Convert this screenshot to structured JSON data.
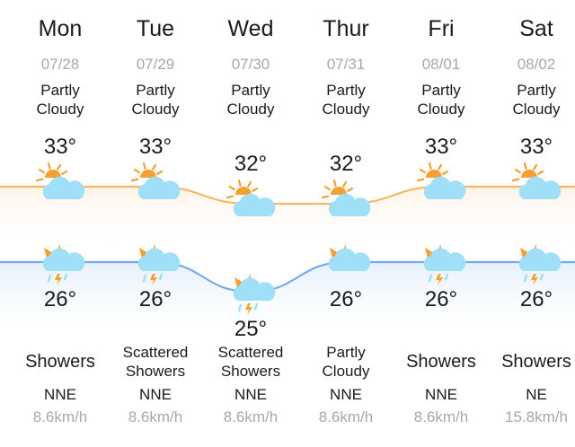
{
  "colors": {
    "high_line": "#f7b766",
    "low_line": "#72aaf0",
    "sun": "#f5a031",
    "cloud": "#9fdff7"
  },
  "days": [
    {
      "day": "Mon",
      "date": "07/28",
      "day_condition": [
        "Partly",
        "Cloudy"
      ],
      "day_icon": "partly-cloudy-day-icon",
      "high": 33,
      "high_label": "33°",
      "night_icon": "thunder-shower-night-icon",
      "low": 26,
      "low_label": "26°",
      "night_condition": [
        "Showers"
      ],
      "wind_dir": "NNE",
      "wind_speed": "8.6km/h"
    },
    {
      "day": "Tue",
      "date": "07/29",
      "day_condition": [
        "Partly",
        "Cloudy"
      ],
      "day_icon": "partly-cloudy-day-icon",
      "high": 33,
      "high_label": "33°",
      "night_icon": "thunder-shower-night-icon",
      "low": 26,
      "low_label": "26°",
      "night_condition": [
        "Scattered",
        "Showers"
      ],
      "wind_dir": "NNE",
      "wind_speed": "8.6km/h"
    },
    {
      "day": "Wed",
      "date": "07/30",
      "day_condition": [
        "Partly",
        "Cloudy"
      ],
      "day_icon": "partly-cloudy-day-icon",
      "high": 32,
      "high_label": "32°",
      "night_icon": "thunder-shower-night-icon",
      "low": 25,
      "low_label": "25°",
      "night_condition": [
        "Scattered",
        "Showers"
      ],
      "wind_dir": "NNE",
      "wind_speed": "8.6km/h"
    },
    {
      "day": "Thur",
      "date": "07/31",
      "day_condition": [
        "Partly",
        "Cloudy"
      ],
      "day_icon": "partly-cloudy-day-icon",
      "high": 32,
      "high_label": "32°",
      "night_icon": "partly-cloudy-night-icon",
      "low": 26,
      "low_label": "26°",
      "night_condition": [
        "Partly",
        "Cloudy"
      ],
      "wind_dir": "NNE",
      "wind_speed": "8.6km/h"
    },
    {
      "day": "Fri",
      "date": "08/01",
      "day_condition": [
        "Partly",
        "Cloudy"
      ],
      "day_icon": "partly-cloudy-day-icon",
      "high": 33,
      "high_label": "33°",
      "night_icon": "thunder-shower-night-icon",
      "low": 26,
      "low_label": "26°",
      "night_condition": [
        "Showers"
      ],
      "wind_dir": "NNE",
      "wind_speed": "8.6km/h"
    },
    {
      "day": "Sat",
      "date": "08/02",
      "day_condition": [
        "Partly",
        "Cloudy"
      ],
      "day_icon": "partly-cloudy-day-icon",
      "high": 33,
      "high_label": "33°",
      "night_icon": "thunder-shower-night-icon",
      "low": 26,
      "low_label": "26°",
      "night_condition": [
        "Showers"
      ],
      "wind_dir": "NE",
      "wind_speed": "15.8km/h"
    }
  ]
}
